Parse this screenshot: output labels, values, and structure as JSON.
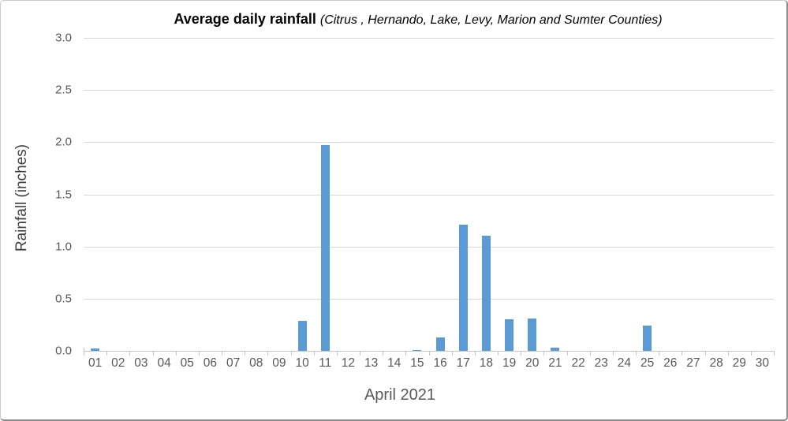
{
  "chart": {
    "title_bold": "Average daily rainfall",
    "title_italic": "(Citrus , Hernando, Lake, Levy, Marion and Sumter Counties)"
  },
  "chart_data": {
    "type": "bar",
    "title": "Average daily rainfall (Citrus , Hernando, Lake, Levy, Marion and Sumter Counties)",
    "xlabel": "April 2021",
    "ylabel": "Rainfall (inches)",
    "categories": [
      "01",
      "02",
      "03",
      "04",
      "05",
      "06",
      "07",
      "08",
      "09",
      "10",
      "11",
      "12",
      "13",
      "14",
      "15",
      "16",
      "17",
      "18",
      "19",
      "20",
      "21",
      "22",
      "23",
      "24",
      "25",
      "26",
      "27",
      "28",
      "29",
      "30"
    ],
    "values": [
      0.02,
      0,
      0,
      0,
      0,
      0,
      0,
      0,
      0,
      0.29,
      1.97,
      0,
      0,
      0,
      0.01,
      0.13,
      1.21,
      1.1,
      0.3,
      0.31,
      0.03,
      0,
      0,
      0,
      0.24,
      0,
      0,
      0,
      0,
      0
    ],
    "ylim": [
      0,
      3.0
    ],
    "yticks": [
      "0.0",
      "0.5",
      "1.0",
      "1.5",
      "2.0",
      "2.5",
      "3.0"
    ],
    "grid": true,
    "legend": false,
    "bar_color": "#5B9BD5",
    "gridline_color": "#D9D9D9",
    "axis_line_color": "#C6C6C6",
    "tick_label_color": "#595959",
    "axis_title_color": "#404040",
    "title_color": "#000000"
  }
}
